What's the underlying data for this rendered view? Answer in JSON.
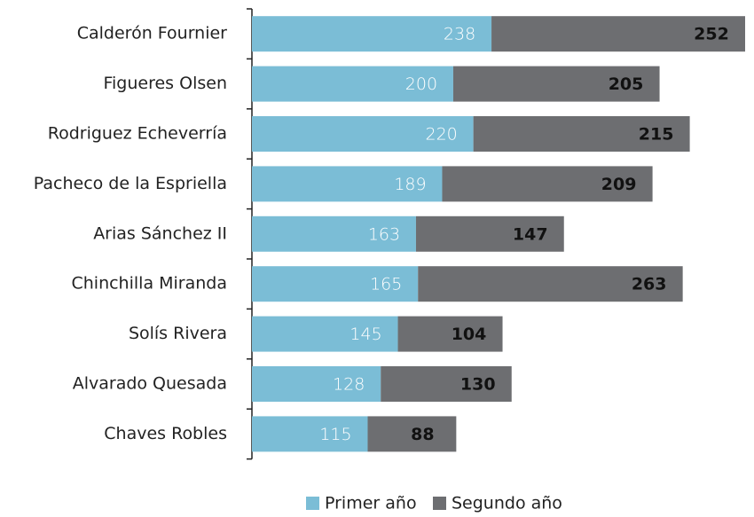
{
  "chart_data": {
    "type": "stacked-barh",
    "categories": [
      "Calderón Fournier",
      "Figueres Olsen",
      "Rodriguez Echeverría",
      "Pacheco de la Espriella",
      "Arias Sánchez II",
      "Chinchilla Miranda",
      "Solís Rivera",
      "Alvarado Quesada",
      "Chaves Robles"
    ],
    "series": [
      {
        "name": "Primer año",
        "color": "#7bbdd6",
        "values": [
          238,
          200,
          220,
          189,
          163,
          165,
          145,
          128,
          115
        ]
      },
      {
        "name": "Segundo año",
        "color": "#6d6e71",
        "values": [
          252,
          205,
          215,
          209,
          147,
          263,
          104,
          130,
          88
        ]
      }
    ],
    "legend": "bottom"
  }
}
